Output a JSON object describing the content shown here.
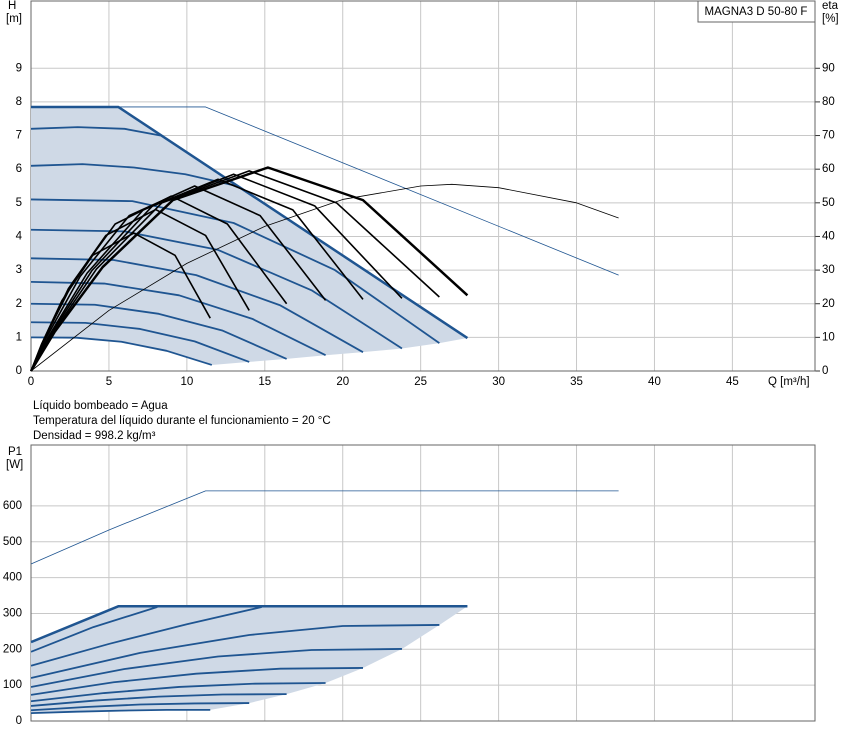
{
  "chart_data": [
    {
      "type": "line",
      "title": "MAGNA3 D 50-80 F",
      "ylabel": "H",
      "yunit": "[m]",
      "y2label": "eta",
      "y2unit": "[%]",
      "xlabel": "Q [m³/h]",
      "annotations": [
        "Líquido bombeado = Agua",
        "Temperatura del líquido durante el funcionamiento = 20 °C",
        "Densidad = 998.2 kg/m³"
      ],
      "xlim": [
        0,
        50.3
      ],
      "xticks": [
        0,
        5,
        10,
        15,
        20,
        25,
        30,
        35,
        40,
        45
      ],
      "ylim": [
        0,
        11
      ],
      "yticks": [
        0,
        1,
        2,
        3,
        4,
        5,
        6,
        7,
        8,
        9
      ],
      "y2lim": [
        0,
        110
      ],
      "y2ticks": [
        0,
        10,
        20,
        30,
        40,
        50,
        60,
        70,
        80,
        90
      ],
      "grid": true,
      "regions": [
        {
          "color": "#cfd9e6",
          "x": [
            0,
            5.6,
            28,
            26.2,
            23.8,
            21.3,
            18.9,
            16.4,
            14,
            11.6,
            8.7,
            5.8,
            2.9,
            0
          ],
          "values": [
            7.85,
            7.85,
            0.98,
            0.83,
            0.67,
            0.56,
            0.47,
            0.36,
            0.27,
            0.18,
            0.6,
            0.87,
            0.99,
            1.0
          ]
        }
      ],
      "series": [
        {
          "color": "#1f5591",
          "width": 2.5,
          "x": [
            0,
            5.6,
            28
          ],
          "values": [
            7.85,
            7.85,
            0.98
          ]
        },
        {
          "color": "#1f5591",
          "width": 0.8,
          "x": [
            0,
            11.2,
            37.7
          ],
          "values": [
            7.85,
            7.85,
            2.85
          ]
        },
        {
          "color": "#1f5591",
          "width": 1.8,
          "x": [
            0,
            3,
            6,
            8.3
          ],
          "values": [
            7.2,
            7.25,
            7.2,
            7.0
          ]
        },
        {
          "color": "#1f5591",
          "width": 1.8,
          "x": [
            0,
            3.3,
            6.6,
            9.9,
            13.2
          ],
          "values": [
            6.1,
            6.15,
            6.05,
            5.85,
            5.5
          ]
        },
        {
          "color": "#1f5591",
          "width": 1.8,
          "x": [
            0,
            6.5,
            13,
            19.5,
            26.2
          ],
          "values": [
            5.1,
            5.05,
            4.4,
            3.0,
            0.83
          ]
        },
        {
          "color": "#1f5591",
          "width": 1.8,
          "x": [
            0,
            6,
            12,
            18,
            23.8
          ],
          "values": [
            4.2,
            4.15,
            3.6,
            2.4,
            0.67
          ]
        },
        {
          "color": "#1f5591",
          "width": 1.8,
          "x": [
            0,
            5.3,
            10.6,
            16,
            21.3
          ],
          "values": [
            3.35,
            3.3,
            2.85,
            1.95,
            0.56
          ]
        },
        {
          "color": "#1f5591",
          "width": 1.8,
          "x": [
            0,
            4.7,
            9.5,
            14.2,
            18.9
          ],
          "values": [
            2.65,
            2.6,
            2.25,
            1.55,
            0.47
          ]
        },
        {
          "color": "#1f5591",
          "width": 1.8,
          "x": [
            0,
            4.1,
            8.2,
            12.3,
            16.4
          ],
          "values": [
            2.0,
            1.97,
            1.7,
            1.2,
            0.36
          ]
        },
        {
          "color": "#1f5591",
          "width": 1.8,
          "x": [
            0,
            3.5,
            7,
            10.5,
            14
          ],
          "values": [
            1.45,
            1.43,
            1.25,
            0.88,
            0.27
          ]
        },
        {
          "color": "#1f5591",
          "width": 1.8,
          "x": [
            0,
            2.9,
            5.8,
            8.7,
            11.6
          ],
          "values": [
            1.0,
            0.99,
            0.87,
            0.6,
            0.18
          ]
        },
        {
          "color": "#000000",
          "width": 0.8,
          "axis": "y2",
          "x": [
            0,
            5,
            10,
            15,
            20,
            25,
            27,
            30,
            35,
            37.7
          ],
          "values": [
            0,
            18,
            32,
            43,
            51,
            55,
            55.5,
            54.5,
            50,
            45.5
          ]
        },
        {
          "color": "#000000",
          "width": 2.5,
          "axis": "y2",
          "x": [
            0,
            1.5,
            4.6,
            9.1,
            15.2,
            21.3,
            28
          ],
          "values": [
            0,
            11.5,
            30.9,
            50.8,
            60.5,
            50.8,
            22.5
          ]
        },
        {
          "color": "#000000",
          "width": 1.6,
          "axis": "y2",
          "x": [
            0,
            1.4,
            4.2,
            8.4,
            14,
            19.6,
            26.2
          ],
          "values": [
            0,
            11.3,
            30.3,
            50,
            59.5,
            50,
            22
          ]
        },
        {
          "color": "#000000",
          "width": 1.6,
          "axis": "y2",
          "x": [
            0,
            1.3,
            3.9,
            7.8,
            13,
            18.2,
            23.8
          ],
          "values": [
            0,
            11.1,
            29.8,
            49.1,
            58.5,
            49.1,
            21.6
          ]
        },
        {
          "color": "#000000",
          "width": 1.6,
          "axis": "y2",
          "x": [
            0,
            1.2,
            3.6,
            7.2,
            12,
            16.8,
            21.3
          ],
          "values": [
            0,
            10.8,
            29.1,
            47.9,
            57,
            47.9,
            21.3
          ]
        },
        {
          "color": "#000000",
          "width": 1.6,
          "axis": "y2",
          "x": [
            0,
            1.05,
            3.15,
            6.3,
            10.5,
            14.7,
            18.9
          ],
          "values": [
            0,
            10.5,
            28.1,
            46.2,
            55,
            46.2,
            21
          ]
        },
        {
          "color": "#000000",
          "width": 1.6,
          "axis": "y2",
          "x": [
            0,
            0.9,
            2.7,
            5.4,
            9,
            12.6,
            16.4
          ],
          "values": [
            0,
            9.9,
            26.5,
            43.7,
            52,
            43.7,
            20
          ]
        },
        {
          "color": "#000000",
          "width": 1.6,
          "axis": "y2",
          "x": [
            0,
            0.8,
            2.4,
            4.8,
            8,
            11.2,
            14
          ],
          "values": [
            0,
            9.1,
            24.5,
            40.3,
            48,
            40.3,
            18
          ]
        },
        {
          "color": "#000000",
          "width": 1.6,
          "axis": "y2",
          "x": [
            0,
            0.66,
            1.98,
            3.96,
            6.6,
            9.24,
            11.5
          ],
          "values": [
            0,
            7.8,
            20.9,
            34.4,
            41,
            34.4,
            15.7
          ]
        }
      ]
    },
    {
      "type": "line",
      "ylabel": "P1",
      "yunit": "[W]",
      "xlim": [
        0,
        50.3
      ],
      "ylim": [
        0,
        770
      ],
      "yticks": [
        0,
        100,
        200,
        300,
        400,
        500,
        600
      ],
      "grid": true,
      "regions": [
        {
          "color": "#cfd9e6",
          "x": [
            0,
            5.6,
            28,
            26.2,
            23.8,
            21.3,
            18.9,
            16.4,
            14,
            11.5,
            8.7,
            5.8,
            2.9,
            0
          ],
          "values": [
            220,
            320,
            320,
            268,
            201,
            148,
            106,
            75,
            50,
            31,
            31,
            29,
            26,
            22
          ]
        }
      ],
      "series": [
        {
          "color": "#1f5591",
          "width": 0.8,
          "x": [
            0,
            5,
            11.2,
            37.7
          ],
          "values": [
            438,
            533,
            642,
            642
          ]
        },
        {
          "color": "#1f5591",
          "width": 2.5,
          "x": [
            0,
            5.6,
            28
          ],
          "values": [
            220,
            320,
            320
          ]
        },
        {
          "color": "#1f5591",
          "width": 1.8,
          "x": [
            0,
            4,
            8.1
          ],
          "values": [
            193,
            262,
            318
          ]
        },
        {
          "color": "#1f5591",
          "width": 1.8,
          "x": [
            0,
            5,
            10,
            14.8
          ],
          "values": [
            154,
            215,
            270,
            318
          ]
        },
        {
          "color": "#1f5591",
          "width": 1.8,
          "x": [
            0,
            7,
            14,
            20,
            26.2
          ],
          "values": [
            120,
            190,
            240,
            265,
            268
          ]
        },
        {
          "color": "#1f5591",
          "width": 1.8,
          "x": [
            0,
            6,
            12,
            18,
            23.8
          ],
          "values": [
            95,
            145,
            180,
            198,
            201
          ]
        },
        {
          "color": "#1f5591",
          "width": 1.8,
          "x": [
            0,
            5.3,
            10.6,
            16,
            21.3
          ],
          "values": [
            73,
            108,
            132,
            146,
            148
          ]
        },
        {
          "color": "#1f5591",
          "width": 1.8,
          "x": [
            0,
            4.7,
            9.5,
            14.2,
            18.9
          ],
          "values": [
            55,
            78,
            95,
            104,
            106
          ]
        },
        {
          "color": "#1f5591",
          "width": 1.8,
          "x": [
            0,
            4.1,
            8.2,
            12.3,
            16.4
          ],
          "values": [
            42,
            57,
            68,
            74,
            75
          ]
        },
        {
          "color": "#1f5591",
          "width": 1.8,
          "x": [
            0,
            3.5,
            7,
            10.5,
            14
          ],
          "values": [
            30,
            39,
            46,
            49,
            50
          ]
        },
        {
          "color": "#1f5591",
          "width": 1.8,
          "x": [
            0,
            2.9,
            5.8,
            8.7,
            11.5
          ],
          "values": [
            22,
            26,
            29,
            31,
            31
          ]
        }
      ]
    }
  ]
}
